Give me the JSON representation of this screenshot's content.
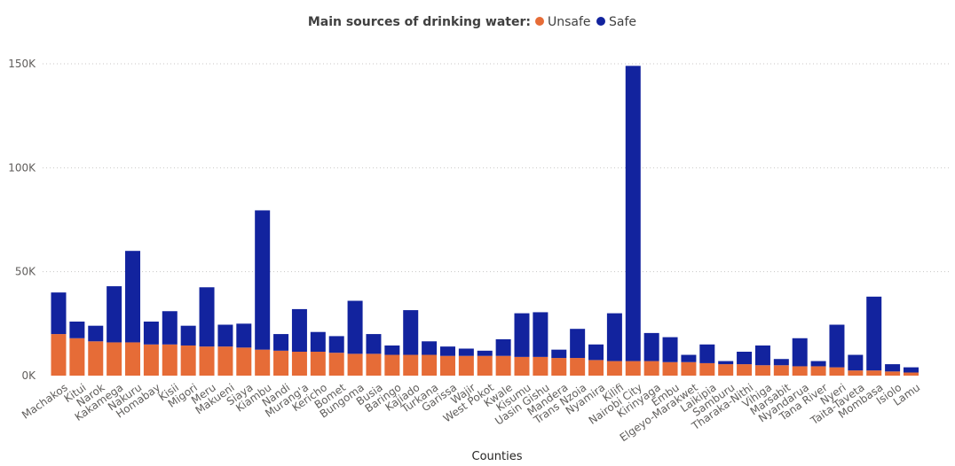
{
  "chart_data": {
    "type": "bar",
    "stacked": true,
    "legend_title": "Main sources of drinking water:",
    "legend_position": "top-center",
    "xlabel": "Counties",
    "ylabel": "",
    "ylim": [
      0,
      150000
    ],
    "y_ticks": [
      "0K",
      "50K",
      "100K",
      "150K"
    ],
    "y_tick_values": [
      0,
      50000,
      100000,
      150000
    ],
    "grid": true,
    "categories": [
      "Machakos",
      "Kitui",
      "Narok",
      "Kakamega",
      "Nakuru",
      "Homabay",
      "Kisii",
      "Migori",
      "Meru",
      "Makueni",
      "Siaya",
      "Kiambu",
      "Nandi",
      "Murang'a",
      "Kericho",
      "Bomet",
      "Bungoma",
      "Busia",
      "Baringo",
      "Kajiado",
      "Turkana",
      "Garissa",
      "Wajir",
      "West Pokot",
      "Kwale",
      "Kisumu",
      "Uasin Gishu",
      "Mandera",
      "Trans Nzoia",
      "Nyamira",
      "Kilifi",
      "Nairobi City",
      "Kirinyaga",
      "Embu",
      "Elgeyo-Marakwet",
      "Laikipia",
      "Samburu",
      "Tharaka-Nithi",
      "Vihiga",
      "Marsabit",
      "Nyandarua",
      "Tana River",
      "Nyeri",
      "Taita-Taveta",
      "Mombasa",
      "Isiolo",
      "Lamu"
    ],
    "series": [
      {
        "name": "Unsafe",
        "color": "#E66C37",
        "values": [
          20000,
          18000,
          16500,
          16000,
          16000,
          15000,
          15000,
          14500,
          14000,
          14000,
          13500,
          12500,
          12000,
          11500,
          11500,
          11000,
          10500,
          10500,
          10000,
          10000,
          10000,
          9500,
          9500,
          9500,
          9500,
          9000,
          9000,
          8500,
          8500,
          7500,
          7000,
          7000,
          7000,
          6500,
          6500,
          6000,
          5500,
          5500,
          5000,
          5000,
          4500,
          4500,
          4000,
          2500,
          2500,
          2000,
          1500
        ]
      },
      {
        "name": "Safe",
        "color": "#12239E",
        "values": [
          20000,
          8000,
          7500,
          27000,
          44000,
          11000,
          16000,
          9500,
          28500,
          10500,
          11500,
          67000,
          8000,
          20500,
          9500,
          8000,
          25500,
          9500,
          4500,
          21500,
          6500,
          4500,
          3500,
          2500,
          8000,
          21000,
          21500,
          4000,
          14000,
          7500,
          23000,
          142000,
          13500,
          12000,
          3500,
          9000,
          1500,
          6000,
          9500,
          3000,
          13500,
          2500,
          20500,
          7500,
          35500,
          3500,
          2500
        ]
      }
    ]
  }
}
